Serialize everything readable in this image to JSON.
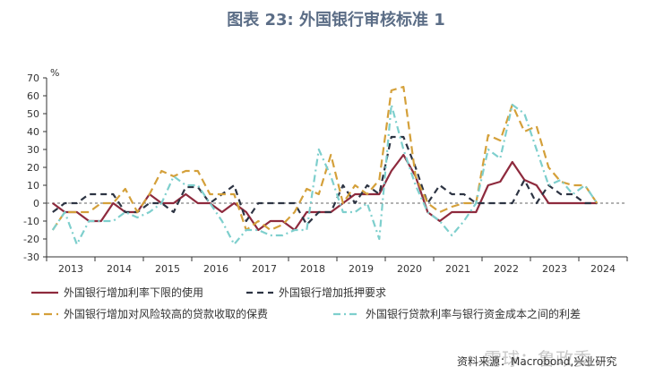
{
  "chart_data": {
    "type": "line",
    "title": "图表 23: 外国银行审核标准 1",
    "ylabel": "%",
    "ylim": [
      -30,
      70
    ],
    "yticks": [
      70,
      60,
      50,
      40,
      30,
      20,
      10,
      0,
      -10,
      -20,
      -30
    ],
    "x_labels": [
      "2013",
      "2014",
      "2015",
      "2016",
      "2017",
      "2018",
      "2019",
      "2020",
      "2021",
      "2022",
      "2023",
      "2024"
    ],
    "x_start_year": 2013,
    "quarters_per_year": 4,
    "series": [
      {
        "name": "外国银行增加利率下限的使用",
        "color": "#8e2a3d",
        "dash": "solid",
        "values": [
          0,
          -5,
          -5,
          -10,
          -10,
          0,
          -5,
          -5,
          5,
          0,
          0,
          5,
          0,
          0,
          -5,
          0,
          -5,
          -15,
          -10,
          -10,
          -15,
          -5,
          -5,
          -5,
          0,
          5,
          5,
          5,
          18,
          27,
          15,
          -5,
          -10,
          -5,
          -5,
          -5,
          10,
          12,
          23,
          13,
          10,
          0,
          0,
          0,
          0,
          0
        ]
      },
      {
        "name": "外国银行增加抵押要求",
        "color": "#2d3443",
        "dash": "dash",
        "values": [
          -5,
          0,
          0,
          5,
          5,
          5,
          -5,
          -5,
          0,
          0,
          -5,
          9,
          9,
          0,
          5,
          10,
          -10,
          0,
          0,
          0,
          0,
          -12,
          -5,
          -5,
          10,
          0,
          10,
          5,
          37,
          37,
          20,
          0,
          10,
          5,
          5,
          0,
          0,
          0,
          0,
          13,
          0,
          10,
          5,
          5,
          0,
          0
        ]
      },
      {
        "name": "外国银行增加对风险较高的贷款收取的保费",
        "color": "#d4a03a",
        "dash": "longdash",
        "values": [
          -15,
          -5,
          -5,
          -5,
          0,
          0,
          8,
          -5,
          5,
          18,
          15,
          18,
          18,
          5,
          5,
          5,
          -15,
          -10,
          -15,
          -12,
          -5,
          8,
          5,
          27,
          0,
          10,
          5,
          13,
          63,
          65,
          15,
          0,
          -5,
          -2,
          0,
          0,
          38,
          35,
          55,
          40,
          43,
          20,
          12,
          10,
          10,
          0
        ]
      },
      {
        "name": "外国银行贷款利率与银行资金成本之间的利差",
        "color": "#7ecfcd",
        "dash": "dashdot",
        "values": [
          -15,
          -5,
          -23,
          -10,
          -10,
          -10,
          -5,
          -8,
          -5,
          0,
          15,
          10,
          10,
          0,
          -10,
          -23,
          -15,
          -15,
          -18,
          -18,
          -15,
          -15,
          30,
          15,
          -5,
          -5,
          0,
          -20,
          55,
          30,
          10,
          -5,
          -10,
          -18,
          -10,
          0,
          30,
          25,
          55,
          50,
          30,
          10,
          13,
          5,
          10,
          0
        ]
      }
    ],
    "zero_line": true,
    "grid": false,
    "legend_position": "bottom"
  },
  "source_text": "资料来源：Macrobond,兴业研究",
  "watermark_text": "雪球：鲁政委"
}
